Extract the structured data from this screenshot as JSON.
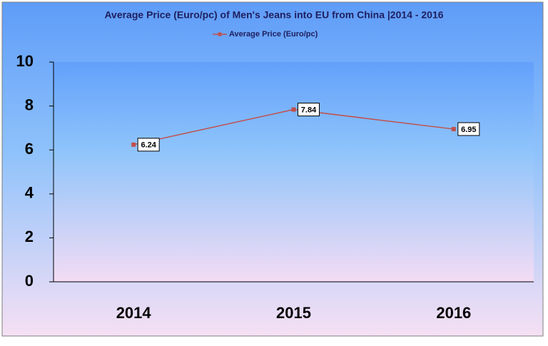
{
  "chart_data": {
    "type": "line",
    "title": "Average Price (Euro/pc) of Men's Jeans into EU from China |2014 - 2016",
    "categories": [
      "2014",
      "2015",
      "2016"
    ],
    "series": [
      {
        "name": "Average Price (Euro/pc)",
        "color": "#c0504d",
        "values": [
          6.24,
          7.84,
          6.95
        ]
      }
    ],
    "ylim": [
      0,
      10
    ],
    "yticks": [
      0,
      2,
      4,
      6,
      8,
      10
    ],
    "grid": false,
    "legend": "top"
  }
}
